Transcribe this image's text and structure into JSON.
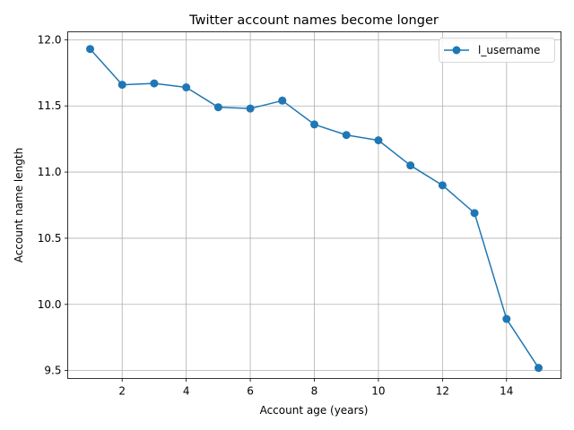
{
  "chart_data": {
    "type": "line",
    "title": "Twitter account names become longer",
    "xlabel": "Account age (years)",
    "ylabel": "Account name length",
    "xlim": [
      0.3,
      15.7
    ],
    "ylim": [
      9.44,
      12.06
    ],
    "xticks": [
      2,
      4,
      6,
      8,
      10,
      12,
      14
    ],
    "yticks": [
      9.5,
      10.0,
      10.5,
      11.0,
      11.5,
      12.0
    ],
    "xtick_labels": [
      "2",
      "4",
      "6",
      "8",
      "10",
      "12",
      "14"
    ],
    "ytick_labels": [
      "9.5",
      "10.0",
      "10.5",
      "11.0",
      "11.5",
      "12.0"
    ],
    "grid": true,
    "legend_position": "upper right",
    "series": [
      {
        "name": "l_username",
        "color": "#1f77b4",
        "marker": "circle",
        "x": [
          1,
          2,
          3,
          4,
          5,
          6,
          7,
          8,
          9,
          10,
          11,
          12,
          13,
          14,
          15
        ],
        "y": [
          11.93,
          11.66,
          11.67,
          11.64,
          11.49,
          11.48,
          11.54,
          11.36,
          11.28,
          11.24,
          11.05,
          10.9,
          10.69,
          9.89,
          9.52
        ]
      }
    ]
  }
}
